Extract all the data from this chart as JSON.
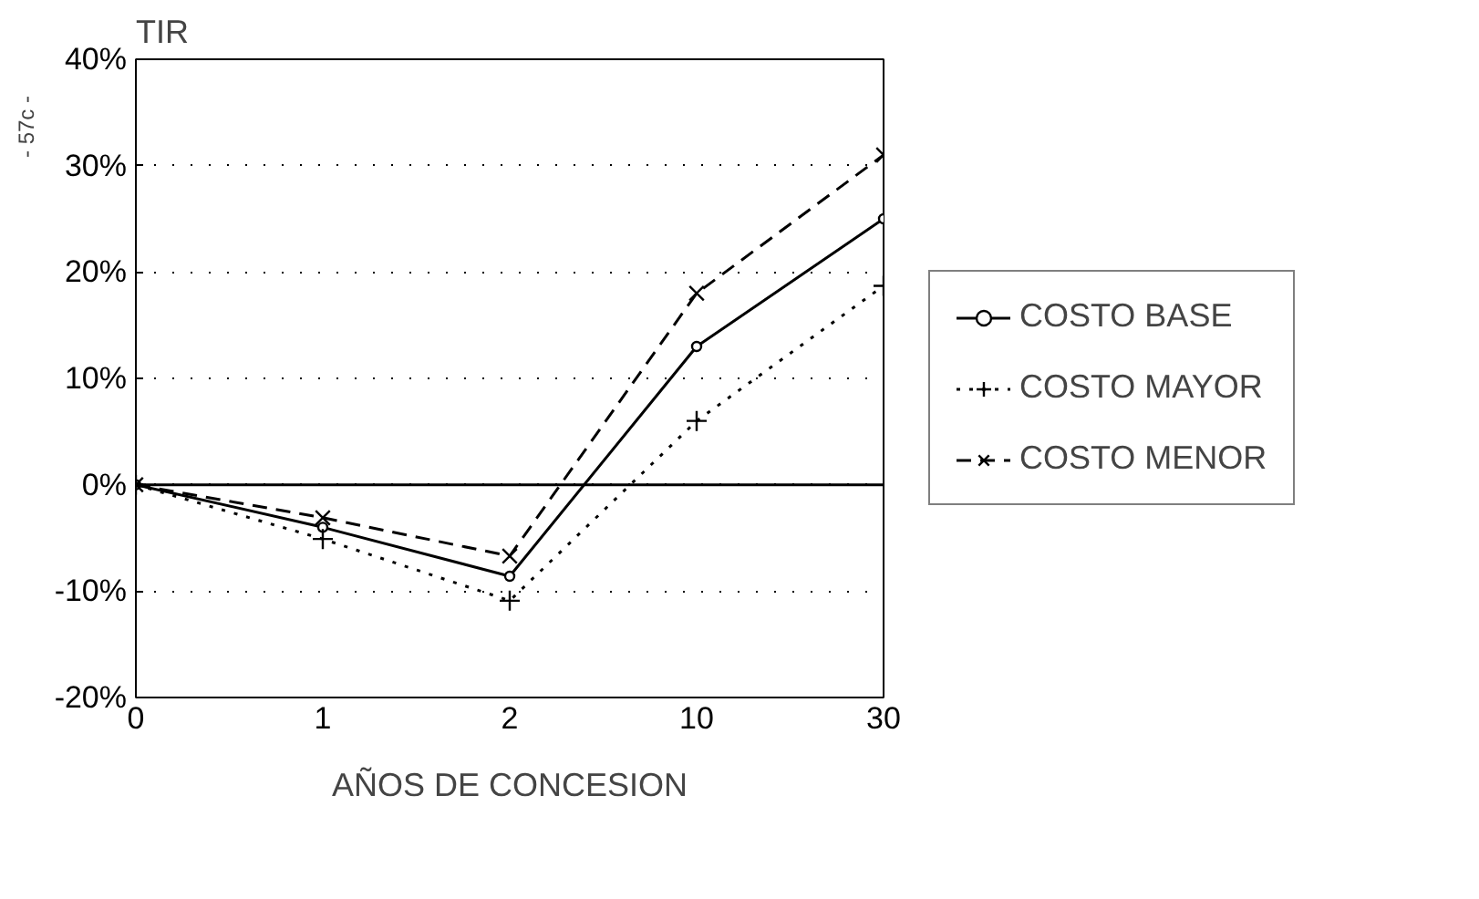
{
  "chart_data": {
    "type": "line",
    "ylabel": "TIR",
    "xlabel": "AÑOS DE CONCESION",
    "categories": [
      "0",
      "1",
      "2",
      "10",
      "30"
    ],
    "series": [
      {
        "name": "COSTO BASE",
        "color": "#000000",
        "values": [
          0,
          -4,
          -8.6,
          13,
          25
        ],
        "marker": "circle",
        "line_style": "solid"
      },
      {
        "name": "COSTO MAYOR",
        "color": "#000000",
        "values": [
          0,
          -5.1,
          -10.9,
          6,
          18.7
        ],
        "marker": "cross",
        "line_style": "dotted"
      },
      {
        "name": "COSTO MENOR",
        "color": "#000000",
        "values": [
          0,
          -3.1,
          -6.7,
          18,
          31
        ],
        "marker": "x",
        "line_style": "dashed"
      }
    ],
    "ylim": [
      -20,
      40
    ],
    "yticks": [
      {
        "value": -20,
        "label": "-20%"
      },
      {
        "value": -10,
        "label": "-10%"
      },
      {
        "value": 0,
        "label": "0%"
      },
      {
        "value": 10,
        "label": "10%"
      },
      {
        "value": 20,
        "label": "20%"
      },
      {
        "value": 30,
        "label": "30%"
      },
      {
        "value": 40,
        "label": "40%"
      }
    ],
    "grid": "y",
    "ref_lines": [
      {
        "axis": "y",
        "value": 0,
        "color": "#000000",
        "line_style": "solid"
      }
    ],
    "legend": "right",
    "annotations": [
      "- 57c -"
    ]
  }
}
